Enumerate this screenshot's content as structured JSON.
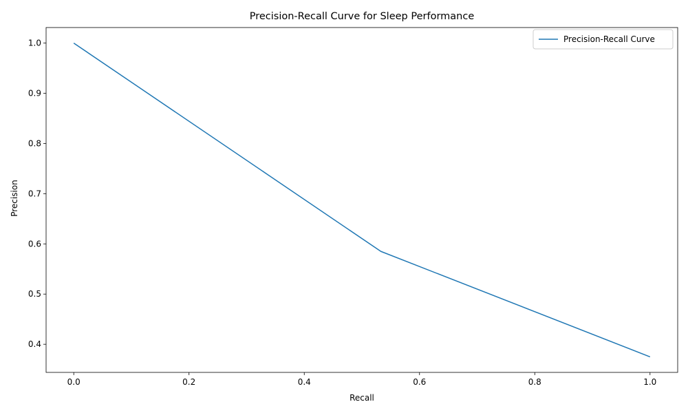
{
  "chart_data": {
    "type": "line",
    "title": "Precision-Recall Curve for Sleep Performance",
    "xlabel": "Recall",
    "ylabel": "Precision",
    "xlim": [
      -0.048,
      1.048
    ],
    "ylim": [
      0.344,
      1.031
    ],
    "xticks": [
      0.0,
      0.2,
      0.4,
      0.6,
      0.8,
      1.0
    ],
    "xtick_labels": [
      "0.0",
      "0.2",
      "0.4",
      "0.6",
      "0.8",
      "1.0"
    ],
    "yticks": [
      0.4,
      0.5,
      0.6,
      0.7,
      0.8,
      0.9,
      1.0
    ],
    "ytick_labels": [
      "0.4",
      "0.5",
      "0.6",
      "0.7",
      "0.8",
      "0.9",
      "1.0"
    ],
    "grid": false,
    "legend_position": "top-right",
    "series": [
      {
        "name": "Precision-Recall Curve",
        "color": "#1f77b4",
        "x": [
          0.0,
          0.533,
          1.0
        ],
        "y": [
          1.0,
          0.585,
          0.375
        ]
      }
    ]
  }
}
